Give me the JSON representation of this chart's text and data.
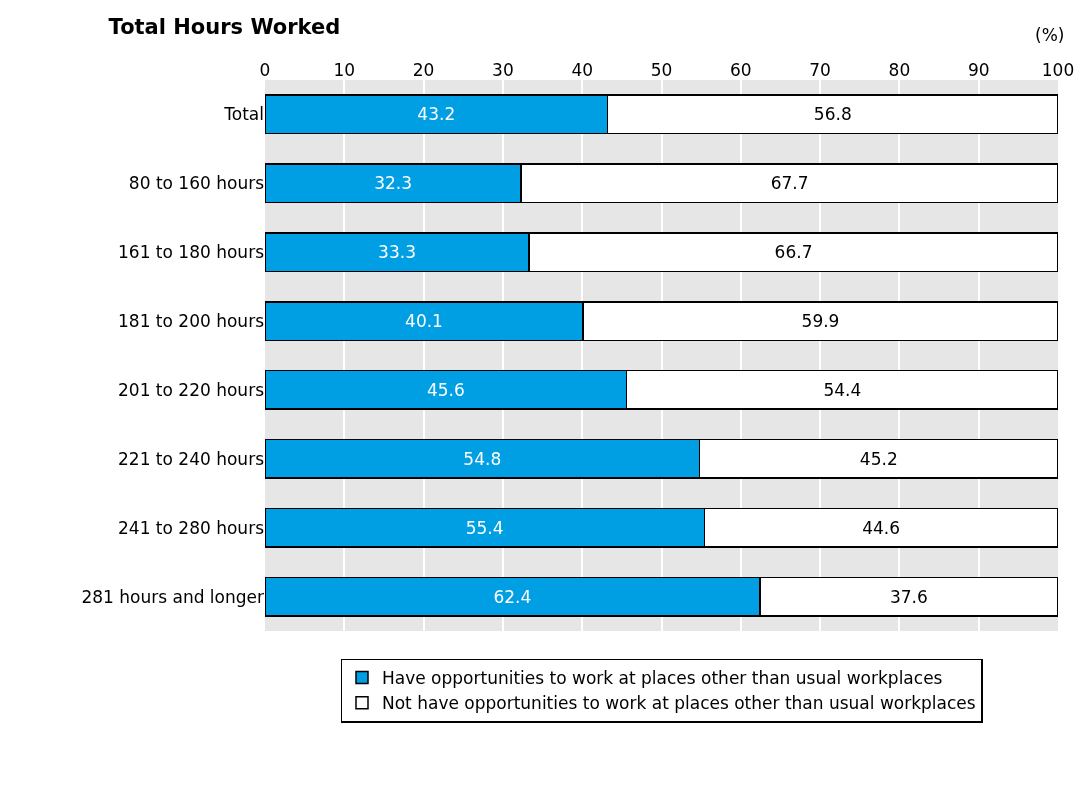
{
  "chart_data": {
    "type": "bar",
    "orientation": "horizontal",
    "stacked": true,
    "title": "Total Hours Worked",
    "annotations": [
      "(%)"
    ],
    "categories": [
      "Total",
      "80 to 160 hours",
      "161 to 180 hours",
      "181 to 200 hours",
      "201 to 220 hours",
      "221 to 240 hours",
      "241 to 280 hours",
      "281 hours and longer"
    ],
    "series": [
      {
        "name": "Have opportunities to work at places other than usual workplaces",
        "color": "#009fe3",
        "values": [
          43.2,
          32.3,
          33.3,
          40.1,
          45.6,
          54.8,
          55.4,
          62.4
        ]
      },
      {
        "name": "Not have opportunities to work at places other than usual workplaces",
        "color": "#ffffff",
        "values": [
          56.8,
          67.7,
          66.7,
          59.9,
          54.4,
          45.2,
          44.6,
          37.6
        ]
      }
    ],
    "xlim": [
      0,
      100
    ],
    "xticks": [
      0,
      10,
      20,
      30,
      40,
      50,
      60,
      70,
      80,
      90,
      100
    ],
    "grid": "x",
    "legend": "bottom",
    "data_labels": true
  }
}
